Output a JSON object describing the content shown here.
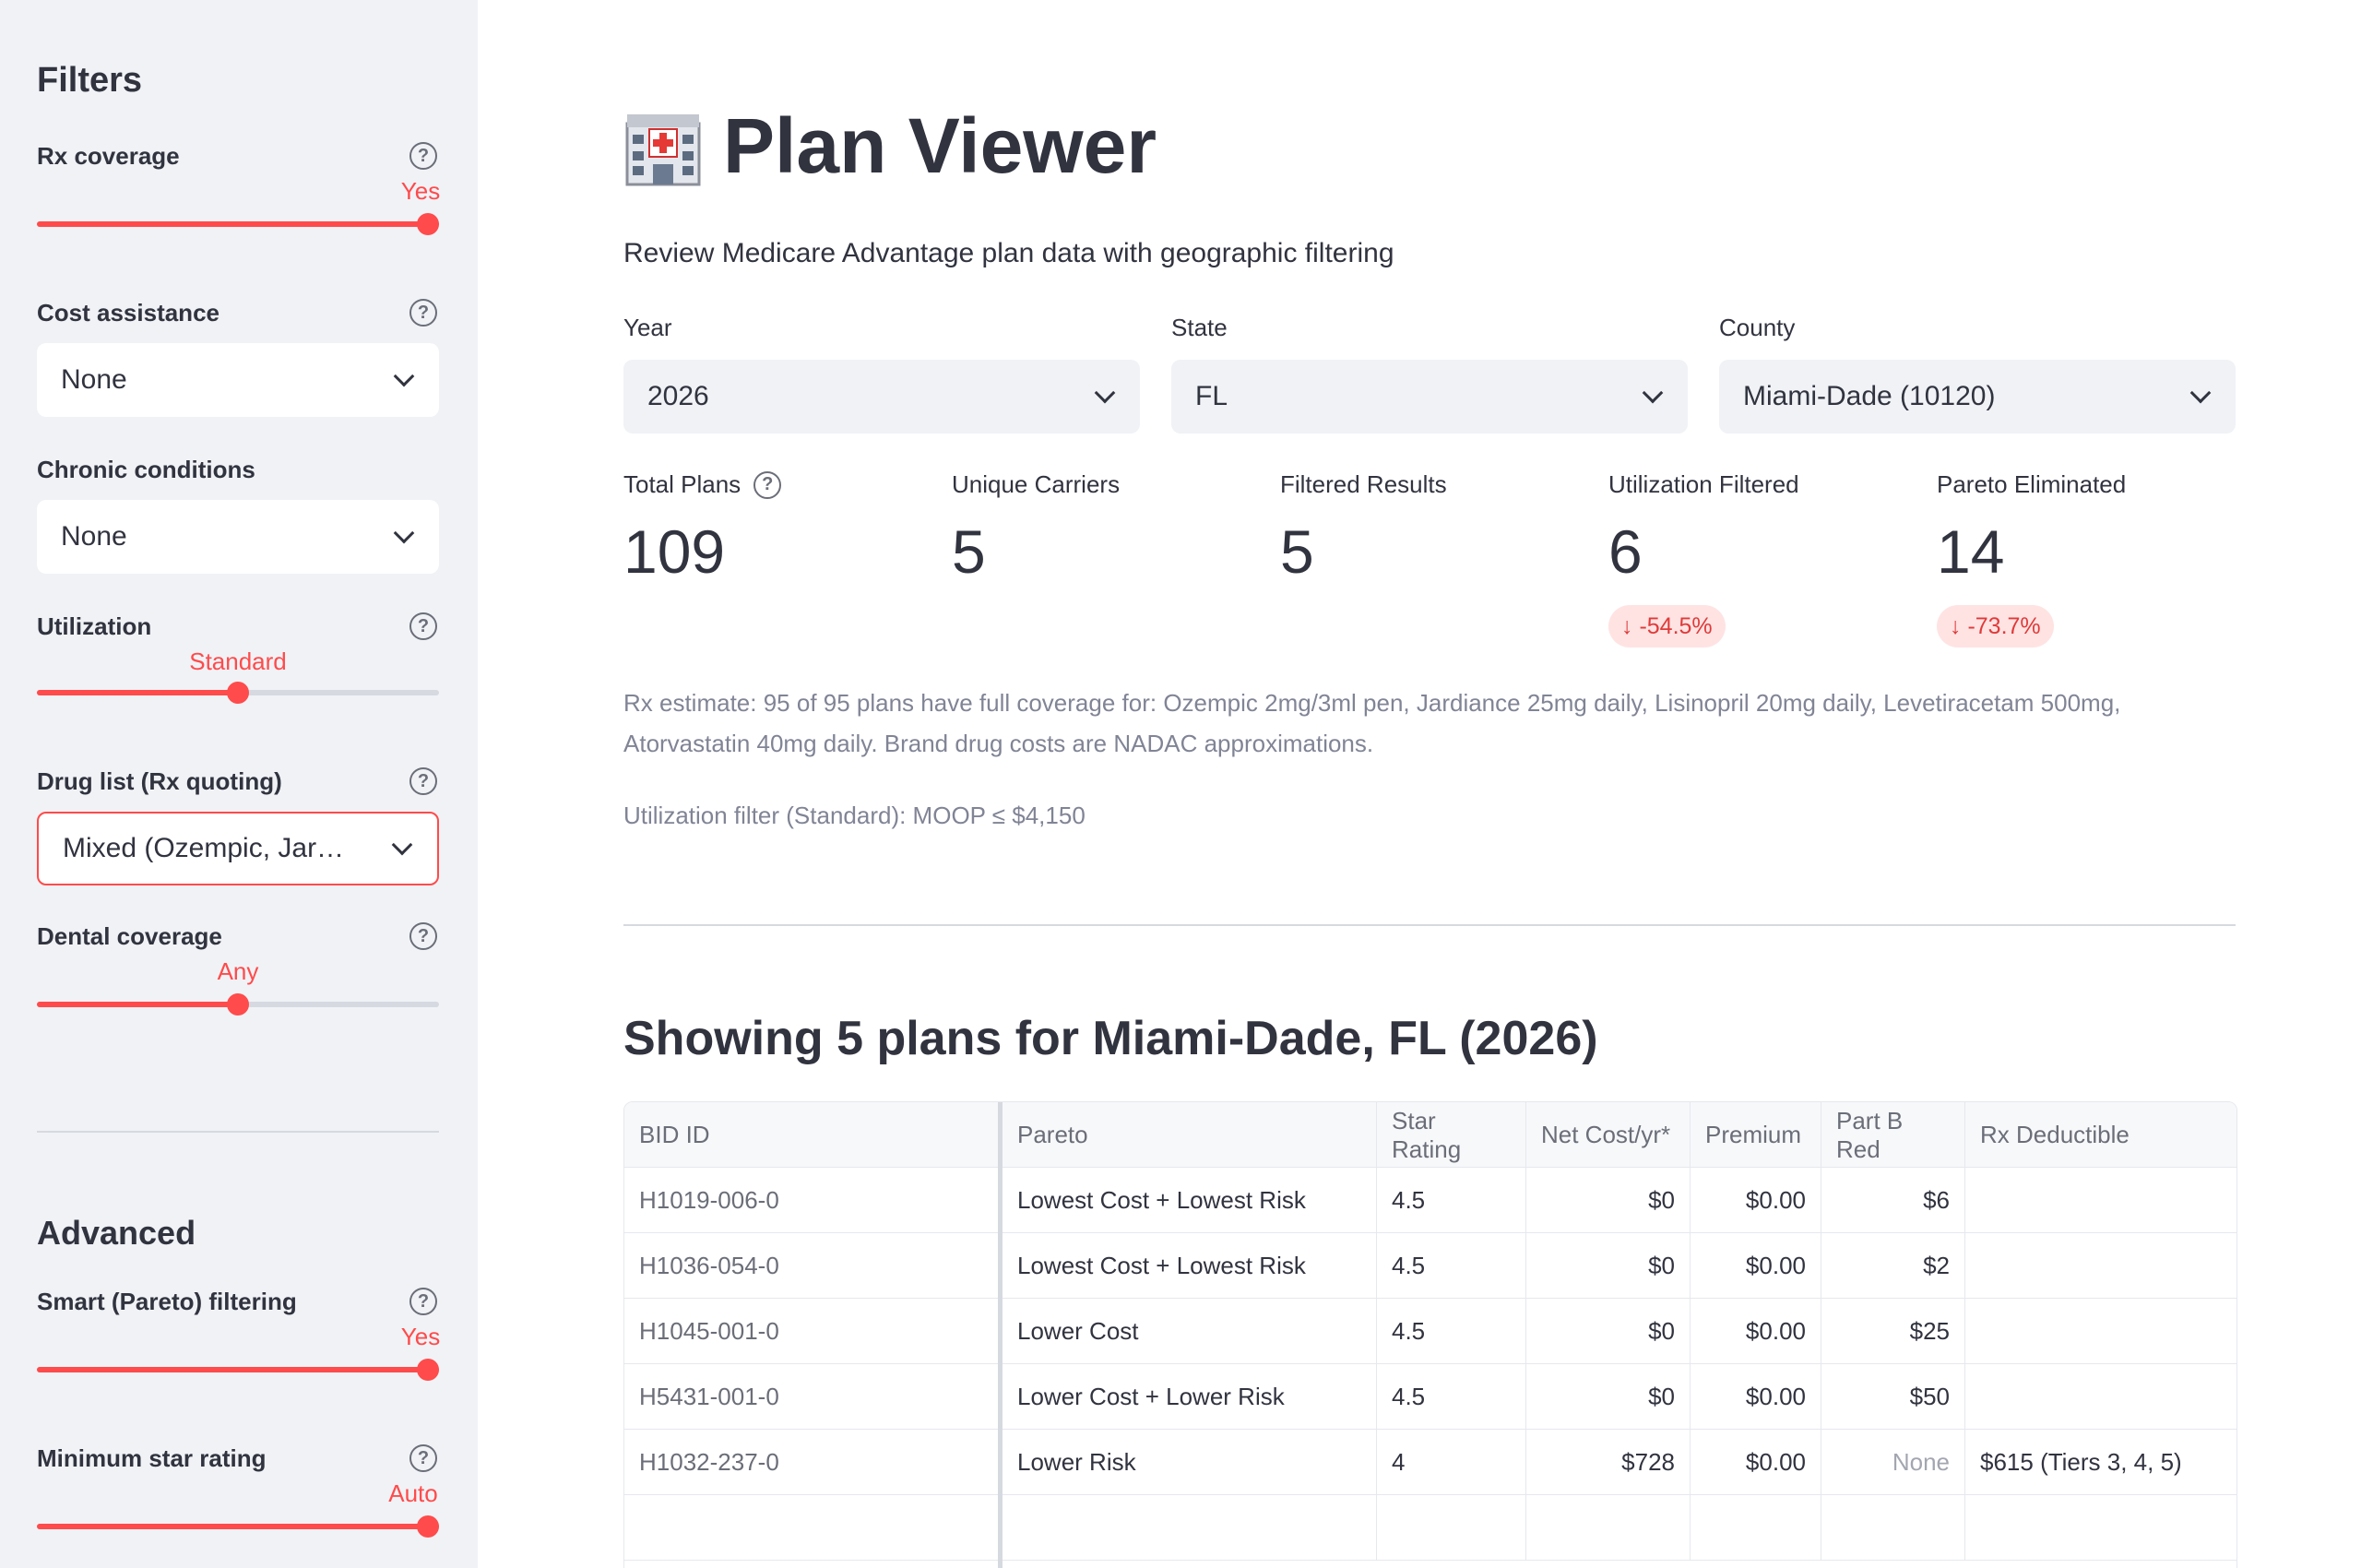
{
  "sidebar": {
    "title": "Filters",
    "rx_coverage": {
      "label": "Rx coverage",
      "value": "Yes",
      "level": 1.0
    },
    "cost_assistance": {
      "label": "Cost assistance",
      "value": "None"
    },
    "chronic_conditions": {
      "label": "Chronic conditions",
      "value": "None"
    },
    "utilization": {
      "label": "Utilization",
      "value": "Standard",
      "level": 0.5
    },
    "drug_list": {
      "label": "Drug list (Rx quoting)",
      "value": "Mixed (Ozempic, Jar…"
    },
    "dental_coverage": {
      "label": "Dental coverage",
      "value": "Any",
      "level": 0.5
    },
    "advanced_title": "Advanced",
    "smart_pareto": {
      "label": "Smart (Pareto) filtering",
      "value": "Yes",
      "level": 1.0
    },
    "min_star": {
      "label": "Minimum star rating",
      "value": "Auto",
      "level": 1.0
    },
    "help_glyph": "?"
  },
  "main": {
    "title": "Plan Viewer",
    "title_icon": "hospital-icon",
    "subtitle": "Review Medicare Advantage plan data with geographic filtering",
    "filters": {
      "year": {
        "label": "Year",
        "value": "2026"
      },
      "state": {
        "label": "State",
        "value": "FL"
      },
      "county": {
        "label": "County",
        "value": "Miami-Dade (10120)"
      }
    },
    "metrics": [
      {
        "label": "Total Plans",
        "value": "109",
        "delta": ""
      },
      {
        "label": "Unique Carriers",
        "value": "5",
        "delta": ""
      },
      {
        "label": "Filtered Results",
        "value": "5",
        "delta": ""
      },
      {
        "label": "Utilization Filtered",
        "value": "6",
        "delta": "↓ -54.5%"
      },
      {
        "label": "Pareto Eliminated",
        "value": "14",
        "delta": "↓ -73.7%"
      }
    ],
    "rx_note": "Rx estimate: 95 of 95 plans have full coverage for: Ozempic 2mg/3ml pen, Jardiance 25mg daily, Lisinopril 20mg daily, Levetiracetam 500mg, Atorvastatin 40mg daily. Brand drug costs are NADAC approximations.",
    "util_note": "Utilization filter (Standard): MOOP ≤ $4,150",
    "section_title": "Showing 5 plans for Miami-Dade, FL (2026)"
  },
  "table": {
    "headers": [
      "BID ID",
      "Pareto",
      "Star Rating",
      "Net Cost/yr*",
      "Premium",
      "Part B Red",
      "Rx Deductible"
    ],
    "rows": [
      [
        "H1019-006-0",
        "Lowest Cost + Lowest Risk",
        "4.5",
        "$0",
        "$0.00",
        "$6",
        ""
      ],
      [
        "H1036-054-0",
        "Lowest Cost + Lowest Risk",
        "4.5",
        "$0",
        "$0.00",
        "$2",
        ""
      ],
      [
        "H1045-001-0",
        "Lower Cost",
        "4.5",
        "$0",
        "$0.00",
        "$25",
        ""
      ],
      [
        "H5431-001-0",
        "Lower Cost + Lower Risk",
        "4.5",
        "$0",
        "$0.00",
        "$50",
        ""
      ],
      [
        "H1032-237-0",
        "Lower Risk",
        "4",
        "$728",
        "$0.00",
        "None",
        "$615 (Tiers 3, 4, 5)"
      ]
    ]
  },
  "colors": {
    "accent": "#ff4b4b",
    "sidebar_bg": "#f0f2f6",
    "text": "#31333f",
    "muted": "#808495",
    "delta_bg": "#ffe3e3",
    "delta_text": "#e03a3a"
  }
}
